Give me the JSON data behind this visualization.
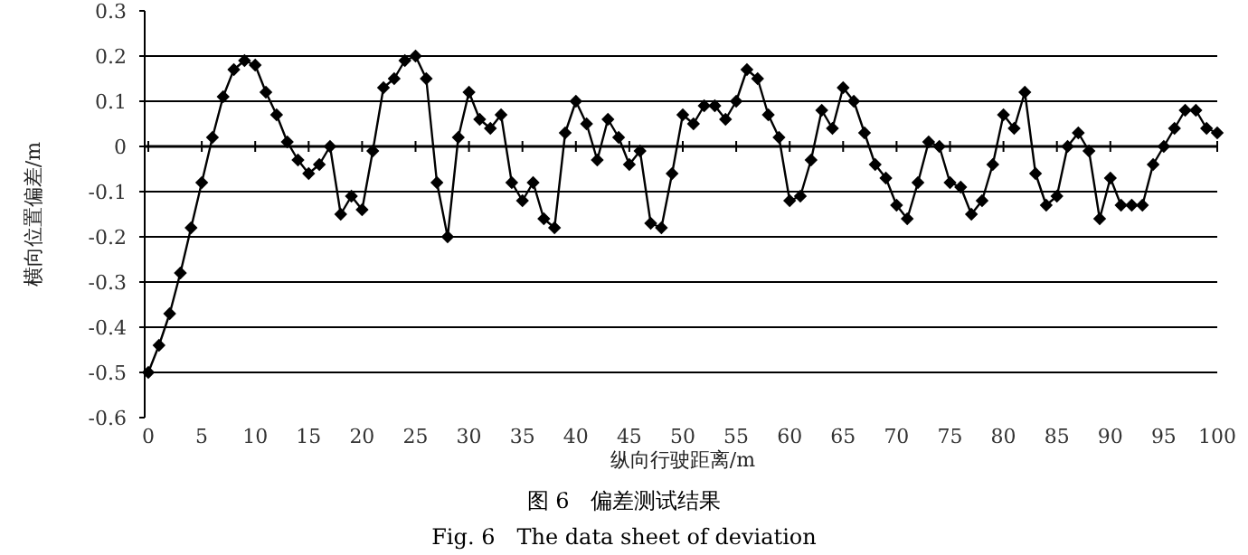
{
  "chart_data": {
    "type": "line",
    "xlabel": "纵向行驶距离/m",
    "ylabel": "横向位置偏差/m",
    "annotations": [
      "图 6　偏差测试结果",
      "Fig. 6　The data sheet of deviation"
    ],
    "x": [
      0,
      1,
      2,
      3,
      4,
      5,
      6,
      7,
      8,
      9,
      10,
      11,
      12,
      13,
      14,
      15,
      16,
      17,
      18,
      19,
      20,
      21,
      22,
      23,
      24,
      25,
      26,
      27,
      28,
      29,
      30,
      31,
      32,
      33,
      34,
      35,
      36,
      37,
      38,
      39,
      40,
      41,
      42,
      43,
      44,
      45,
      46,
      47,
      48,
      49,
      50,
      51,
      52,
      53,
      54,
      55,
      56,
      57,
      58,
      59,
      60,
      61,
      62,
      63,
      64,
      65,
      66,
      67,
      68,
      69,
      70,
      71,
      72,
      73,
      74,
      75,
      76,
      77,
      78,
      79,
      80,
      81,
      82,
      83,
      84,
      85,
      86,
      87,
      88,
      89,
      90,
      91,
      92,
      93,
      94,
      95,
      96,
      97,
      98,
      99,
      100
    ],
    "series": [
      {
        "color": "#000000",
        "values": [
          -0.5,
          -0.44,
          -0.37,
          -0.28,
          -0.18,
          -0.08,
          0.02,
          0.11,
          0.17,
          0.19,
          0.18,
          0.12,
          0.07,
          0.01,
          -0.03,
          -0.06,
          -0.04,
          0.0,
          -0.15,
          -0.11,
          -0.14,
          -0.01,
          0.13,
          0.15,
          0.19,
          0.2,
          0.15,
          -0.08,
          -0.2,
          0.02,
          0.12,
          0.06,
          0.04,
          0.07,
          -0.08,
          -0.12,
          -0.08,
          -0.16,
          -0.18,
          0.03,
          0.1,
          0.05,
          -0.03,
          0.06,
          0.02,
          -0.04,
          -0.01,
          -0.17,
          -0.18,
          -0.06,
          0.07,
          0.05,
          0.09,
          0.09,
          0.06,
          0.1,
          0.17,
          0.15,
          0.07,
          0.02,
          -0.12,
          -0.11,
          -0.03,
          0.08,
          0.04,
          0.13,
          0.1,
          0.03,
          -0.04,
          -0.07,
          -0.13,
          -0.16,
          -0.08,
          0.01,
          0.0,
          -0.08,
          -0.09,
          -0.15,
          -0.12,
          -0.04,
          0.07,
          0.04,
          0.12,
          -0.06,
          -0.13,
          -0.11,
          0.0,
          0.03,
          -0.01,
          -0.16,
          -0.07,
          -0.13,
          -0.13,
          -0.13,
          -0.04,
          0.0,
          0.04,
          0.08,
          0.08,
          0.04,
          0.03
        ]
      }
    ],
    "xlim": [
      0,
      100
    ],
    "xticks": [
      0,
      5,
      10,
      15,
      20,
      25,
      30,
      35,
      40,
      45,
      50,
      55,
      60,
      65,
      70,
      75,
      80,
      85,
      90,
      95,
      100
    ],
    "ylim": [
      -0.6,
      0.3
    ],
    "yticks": [
      {
        "value": -0.6,
        "label": "-0.6"
      },
      {
        "value": -0.5,
        "label": "-0.5"
      },
      {
        "value": -0.4,
        "label": "-0.4"
      },
      {
        "value": -0.3,
        "label": "-0.3"
      },
      {
        "value": -0.2,
        "label": "-0.2"
      },
      {
        "value": -0.1,
        "label": "-0.1"
      },
      0,
      0.1,
      0.2,
      0.3
    ],
    "grid": "y",
    "marker": "diamond",
    "line_style": "solid"
  }
}
